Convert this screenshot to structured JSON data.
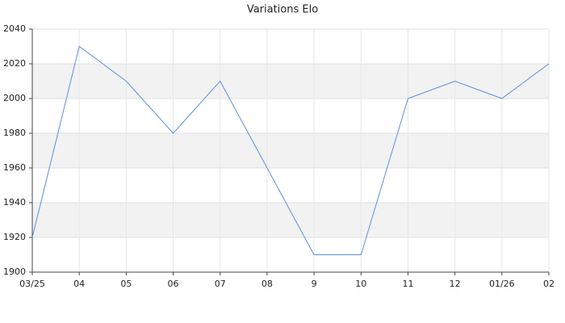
{
  "chart_data": {
    "type": "line",
    "title": "Variations Elo",
    "categories": [
      "03/25",
      "04",
      "05",
      "06",
      "07",
      "08",
      "9",
      "10",
      "11",
      "12",
      "01/26",
      "02"
    ],
    "series": [
      {
        "name": "Elo",
        "color": "#5b8fe0",
        "values": [
          1920,
          2030,
          2010,
          1980,
          2010,
          1960,
          1910,
          1910,
          2000,
          2010,
          2000,
          2020
        ]
      }
    ],
    "ylim": [
      1900,
      2040
    ],
    "yticks": [
      1900,
      1920,
      1940,
      1960,
      1980,
      2000,
      2020,
      2040
    ],
    "grid": true
  }
}
